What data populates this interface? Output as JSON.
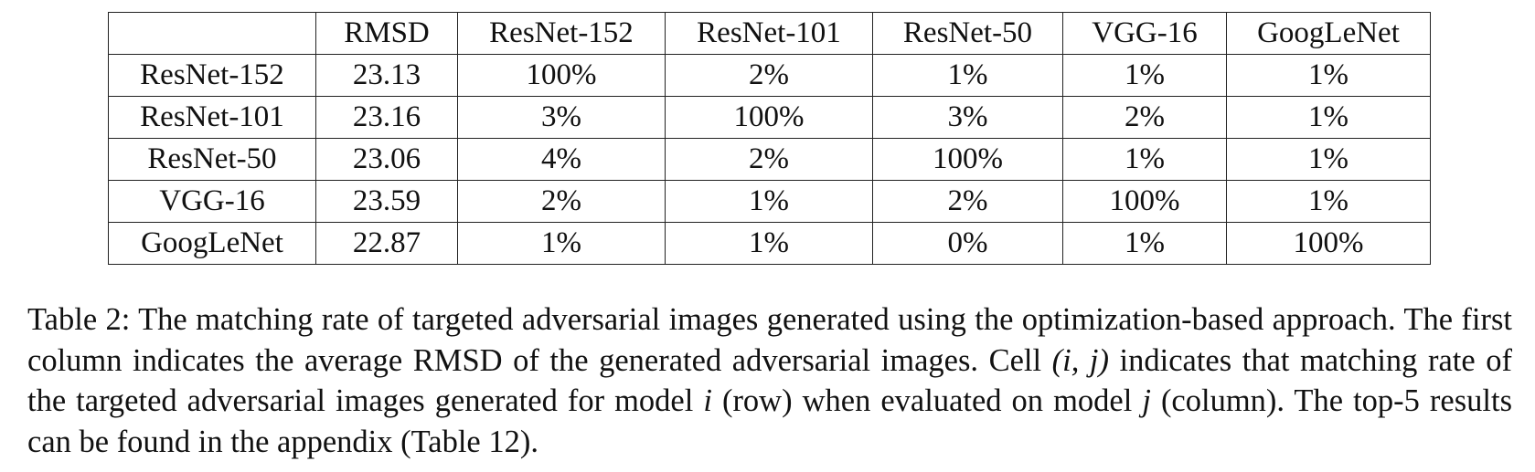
{
  "table": {
    "header": [
      "RMSD",
      "ResNet-152",
      "ResNet-101",
      "ResNet-50",
      "VGG-16",
      "GoogLeNet"
    ],
    "rows": [
      [
        "ResNet-152",
        "23.13",
        "100%",
        "2%",
        "1%",
        "1%",
        "1%"
      ],
      [
        "ResNet-101",
        "23.16",
        "3%",
        "100%",
        "3%",
        "2%",
        "1%"
      ],
      [
        "ResNet-50",
        "23.06",
        "4%",
        "2%",
        "100%",
        "1%",
        "1%"
      ],
      [
        "VGG-16",
        "23.59",
        "2%",
        "1%",
        "2%",
        "100%",
        "1%"
      ],
      [
        "GoogLeNet",
        "22.87",
        "1%",
        "1%",
        "0%",
        "1%",
        "100%"
      ]
    ]
  },
  "caption": {
    "parts": [
      "Table 2: The matching rate of targeted adversarial images generated using the optimization-based approach. The first column indicates the average RMSD of the generated adversarial images. Cell ",
      "(i, j)",
      " indicates that matching rate of the targeted adversarial images generated for model ",
      "i",
      " (row) when evaluated on model ",
      "j",
      " (column). The top-5 results can be found in the appendix (Table 12)."
    ]
  }
}
